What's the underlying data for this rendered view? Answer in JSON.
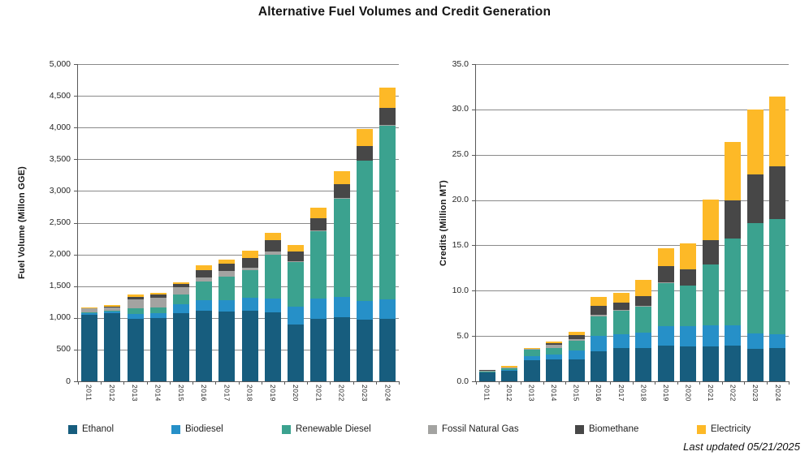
{
  "title": "Alternative Fuel Volumes and Credit Generation",
  "footer": {
    "last_updated": "Last updated 05/21/2025"
  },
  "colors": {
    "ethanol": "#175D7E",
    "biodiesel": "#2690C8",
    "renewable_diesel": "#3BA28F",
    "fossil_natural_gas": "#A3A3A1",
    "biomethane": "#474747",
    "electricity": "#FDB927",
    "gridline": "#8A8A8A",
    "axis": "#595959"
  },
  "legend": [
    {
      "label": "Ethanol",
      "color": "#175D7E"
    },
    {
      "label": "Biodiesel",
      "color": "#2690C8"
    },
    {
      "label": "Renewable Diesel",
      "color": "#3BA28F"
    },
    {
      "label": "Fossil Natural Gas",
      "color": "#A3A3A1"
    },
    {
      "label": "Biomethane",
      "color": "#474747"
    },
    {
      "label": "Electricity",
      "color": "#FDB927"
    }
  ],
  "chart_data": [
    {
      "type": "bar",
      "stacked": true,
      "ylabel": "Fuel Volume (Millon GGE)",
      "ylim": [
        0,
        5000
      ],
      "ytick_step": 500,
      "ytick_labels": [
        "5,000",
        "4,500",
        "4,000",
        "3,500",
        "3,000",
        "2,500",
        "2,000",
        "1,500",
        "1,000",
        "500",
        "0"
      ],
      "grid": true,
      "legend_position": "bottom",
      "categories": [
        "2011",
        "2012",
        "2013",
        "2014",
        "2015",
        "2016",
        "2017",
        "2018",
        "2019",
        "2020",
        "2021",
        "2022",
        "2023",
        "2024"
      ],
      "series": [
        {
          "name": "Ethanol",
          "color": "#175D7E",
          "values": [
            1050,
            1075,
            990,
            1000,
            1075,
            1115,
            1100,
            1115,
            1085,
            895,
            990,
            1010,
            970,
            990
          ]
        },
        {
          "name": "Biodiesel",
          "color": "#2690C8",
          "values": [
            25,
            25,
            70,
            80,
            140,
            170,
            185,
            205,
            225,
            285,
            310,
            320,
            295,
            300
          ]
        },
        {
          "name": "Renewable Diesel",
          "color": "#3BA28F",
          "values": [
            10,
            15,
            85,
            90,
            150,
            290,
            360,
            430,
            690,
            700,
            1065,
            1550,
            2210,
            2740
          ]
        },
        {
          "name": "Fossil Natural Gas",
          "color": "#A3A3A1",
          "values": [
            65,
            55,
            145,
            145,
            120,
            65,
            100,
            45,
            50,
            10,
            10,
            10,
            10,
            10
          ]
        },
        {
          "name": "Biomethane",
          "color": "#474747",
          "values": [
            5,
            5,
            45,
            55,
            50,
            115,
            105,
            155,
            180,
            160,
            195,
            220,
            230,
            265
          ]
        },
        {
          "name": "Electricity",
          "color": "#FDB927",
          "values": [
            15,
            25,
            30,
            30,
            25,
            75,
            70,
            110,
            115,
            95,
            170,
            200,
            260,
            325
          ]
        }
      ],
      "totals": [
        1170,
        1200,
        1365,
        1400,
        1560,
        1830,
        1920,
        2060,
        2345,
        2145,
        2740,
        3310,
        3975,
        4630
      ]
    },
    {
      "type": "bar",
      "stacked": true,
      "ylabel": "Credits (Million MT)",
      "ylim": [
        0,
        35
      ],
      "ytick_step": 5,
      "ytick_labels": [
        "35.0",
        "30.0",
        "25.0",
        "20.0",
        "15.0",
        "10.0",
        "5.0",
        "0.0"
      ],
      "grid": true,
      "legend_position": "bottom",
      "categories": [
        "2011",
        "2012",
        "2013",
        "2014",
        "2015",
        "2016",
        "2017",
        "2018",
        "2019",
        "2020",
        "2021",
        "2022",
        "2023",
        "2024"
      ],
      "series": [
        {
          "name": "Ethanol",
          "color": "#175D7E",
          "values": [
            0.95,
            1.2,
            2.3,
            2.4,
            2.4,
            3.35,
            3.65,
            3.65,
            3.95,
            3.85,
            3.85,
            3.9,
            3.6,
            3.65
          ]
        },
        {
          "name": "Biodiesel",
          "color": "#2690C8",
          "values": [
            0.05,
            0.1,
            0.5,
            0.6,
            1.0,
            1.65,
            1.55,
            1.7,
            2.15,
            2.25,
            2.35,
            2.3,
            1.65,
            1.55
          ]
        },
        {
          "name": "Renewable Diesel",
          "color": "#3BA28F",
          "values": [
            0.05,
            0.1,
            0.65,
            0.7,
            1.05,
            2.15,
            2.6,
            2.9,
            4.7,
            4.45,
            6.65,
            9.55,
            12.2,
            12.7
          ]
        },
        {
          "name": "Fossil Natural Gas",
          "color": "#A3A3A1",
          "values": [
            0.15,
            0.15,
            0.1,
            0.3,
            0.25,
            0.15,
            0.1,
            0.1,
            0.1,
            0.05,
            0.05,
            0.05,
            0.05,
            0.05
          ]
        },
        {
          "name": "Biomethane",
          "color": "#474747",
          "values": [
            0.02,
            0.02,
            0.05,
            0.2,
            0.4,
            1.0,
            0.8,
            1.05,
            1.8,
            1.8,
            2.7,
            4.2,
            5.3,
            5.8
          ]
        },
        {
          "name": "Electricity",
          "color": "#FDB927",
          "values": [
            0.08,
            0.13,
            0.1,
            0.2,
            0.4,
            1.0,
            1.1,
            1.8,
            1.95,
            2.8,
            4.5,
            6.4,
            7.2,
            7.65
          ]
        }
      ],
      "totals": [
        1.3,
        1.7,
        3.7,
        4.4,
        5.5,
        9.3,
        9.8,
        11.2,
        14.65,
        15.2,
        20.1,
        26.4,
        30.0,
        31.4
      ]
    }
  ]
}
